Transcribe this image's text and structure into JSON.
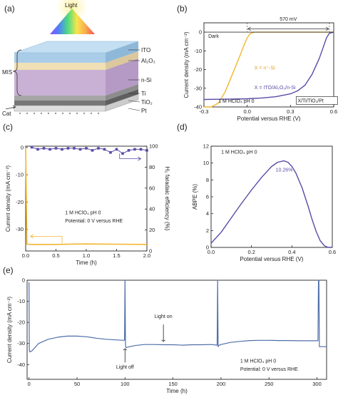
{
  "panel_labels": {
    "a": "(a)",
    "b": "(b)",
    "c": "(c)",
    "d": "(d)",
    "e": "(e)"
  },
  "panel_a": {
    "light": "Light",
    "layers": {
      "ito": "ITO",
      "al2o3": "Al₂O₃",
      "nsi": "n-Si",
      "ti": "Ti",
      "tio2": "TiO₂",
      "pt": "Pt"
    },
    "mis": "MIS",
    "cat": "Cat",
    "colors": {
      "ito": "#a9cde8",
      "al2o3": "#f1dfb6",
      "nsi": "#c9b1d6",
      "ti": "#a6a6a6",
      "tio2": "#777777",
      "pt": "#dedede"
    }
  },
  "chart_data": [
    {
      "id": "b",
      "type": "line",
      "xlabel": "Potential versus RHE (V)",
      "ylabel": "Current density (mA cm⁻²)",
      "xlim": [
        -0.3,
        0.6
      ],
      "ylim": [
        -40,
        5
      ],
      "xticks": [
        "-0.3",
        "0.0",
        "0.3",
        "0.6"
      ],
      "yticks": [
        "0",
        "-10",
        "-20",
        "-30",
        "-40"
      ],
      "annotations": {
        "dark": "Dark",
        "delta": "570 mV",
        "condition": "1 M HClO₄ pH 0",
        "box": "X/Ti/TiO₂/Pt"
      },
      "series": [
        {
          "name": "X = n⁺-Si",
          "color": "#f2b630",
          "x": [
            -0.3,
            -0.25,
            -0.2,
            -0.15,
            -0.1,
            -0.05,
            -0.02,
            0.0,
            0.02,
            0.05,
            0.08,
            0.6
          ],
          "y": [
            -40,
            -40,
            -38,
            -31.5,
            -22,
            -12.5,
            -6.5,
            -3,
            -0.8,
            0,
            0,
            0
          ]
        },
        {
          "name": "X = ITO/Al₂O₃/n-Si",
          "color": "#5b4aa6",
          "x": [
            -0.3,
            -0.2,
            -0.1,
            0.0,
            0.1,
            0.2,
            0.3,
            0.35,
            0.4,
            0.45,
            0.5,
            0.53,
            0.55,
            0.57,
            0.6
          ],
          "y": [
            -36,
            -35.9,
            -35.8,
            -35.6,
            -35.2,
            -34.5,
            -33,
            -31.4,
            -28.4,
            -22.5,
            -14,
            -7.5,
            -3,
            -0.6,
            0
          ]
        },
        {
          "name": "Dark",
          "color": "#333333",
          "x": [
            -0.3,
            0.6
          ],
          "y": [
            0,
            0
          ]
        }
      ]
    },
    {
      "id": "c",
      "type": "line",
      "xlabel": "Time (h)",
      "ylabel": "Current density (mA cm⁻²)",
      "y2label": "H₂ faradaic efficiency (%)",
      "xlim": [
        0,
        2
      ],
      "ylim": [
        -38,
        0.5
      ],
      "y2lim": [
        0,
        100
      ],
      "xticks": [
        "0.0",
        "0.5",
        "1.0",
        "1.5",
        "2.0"
      ],
      "yticks": [
        "0",
        "-10",
        "-20",
        "-30"
      ],
      "y2ticks": [
        "0",
        "20",
        "40",
        "60",
        "80",
        "100"
      ],
      "annotations": {
        "condition": "1 M HClO₄ pH 0",
        "potential": "Potential: 0 V versus RHE"
      },
      "series": [
        {
          "name": "current",
          "color": "#f2b630",
          "x": [
            0,
            0.02,
            0.1,
            0.5,
            1.0,
            1.5,
            2.0
          ],
          "y": [
            0,
            -35.5,
            -35.6,
            -35.6,
            -35.4,
            -35.5,
            -35.6
          ]
        },
        {
          "name": "faradaic efficiency",
          "color": "#5b4aa6",
          "axis": "y2",
          "x": [
            0.1,
            0.2,
            0.3,
            0.4,
            0.5,
            0.6,
            0.7,
            0.8,
            0.9,
            1.0,
            1.1,
            1.2,
            1.3,
            1.4,
            1.5,
            1.6,
            1.7,
            1.8,
            1.9,
            2.0
          ],
          "y": [
            99,
            97,
            98,
            97,
            98,
            97,
            98,
            98,
            97,
            98,
            96,
            98,
            97,
            94,
            97,
            93,
            96,
            97,
            97,
            96
          ]
        }
      ]
    },
    {
      "id": "d",
      "type": "line",
      "xlabel": "Potential versus RHE (V)",
      "ylabel": "ABPE (%)",
      "xlim": [
        0,
        0.6
      ],
      "ylim": [
        0,
        12
      ],
      "xticks": [
        "0.0",
        "0.2",
        "0.4",
        "0.6"
      ],
      "yticks": [
        "0",
        "2",
        "4",
        "6",
        "8",
        "10",
        "12"
      ],
      "annotations": {
        "condition": "1 M HClO₄ pH 0",
        "peak": "10.26%"
      },
      "series": [
        {
          "name": "ABPE",
          "color": "#5b4aa6",
          "x": [
            0.0,
            0.05,
            0.1,
            0.15,
            0.2,
            0.25,
            0.3,
            0.33,
            0.36,
            0.38,
            0.4,
            0.42,
            0.45,
            0.48,
            0.5,
            0.52,
            0.54,
            0.56,
            0.58,
            0.6
          ],
          "y": [
            0.5,
            1.8,
            3.5,
            5.2,
            6.8,
            8.3,
            9.6,
            10.1,
            10.26,
            10.1,
            9.6,
            8.8,
            7.1,
            4.9,
            3.3,
            1.9,
            0.8,
            0.2,
            0.0,
            0.0
          ]
        }
      ]
    },
    {
      "id": "e",
      "type": "line",
      "xlabel": "Time (h)",
      "ylabel": "Current density (mA cm⁻²)",
      "xlim": [
        -2,
        310
      ],
      "ylim": [
        -47,
        0
      ],
      "xticks": [
        "0",
        "50",
        "100",
        "150",
        "200",
        "250",
        "300"
      ],
      "yticks": [
        "0",
        "-10",
        "-20",
        "-30",
        "-40"
      ],
      "annotations": {
        "light_off": "Light off",
        "light_on": "Light on",
        "condition": "1 M HClO₄ pH 0",
        "potential": "Potential: 0 V versus RHE"
      },
      "series": [
        {
          "name": "current",
          "color": "#4f6fa8",
          "x": [
            0,
            0.3,
            1,
            3,
            10,
            20,
            30,
            40,
            50,
            60,
            70,
            80,
            90,
            99.5,
            100,
            100.5,
            101,
            105,
            110,
            120,
            130,
            140,
            150,
            160,
            170,
            180,
            190,
            196,
            196.5,
            197,
            197.5,
            200,
            210,
            220,
            230,
            240,
            250,
            260,
            270,
            280,
            290,
            300,
            301,
            301.5,
            302,
            302.5,
            303,
            310
          ],
          "y": [
            -1,
            -33,
            -34,
            -33.5,
            -30,
            -28,
            -27,
            -26.5,
            -26.5,
            -26.8,
            -27.5,
            -28,
            -28.3,
            -28.5,
            0,
            -31,
            -32,
            -31.5,
            -31,
            -30.5,
            -30.5,
            -30.6,
            -30.6,
            -30.8,
            -30.6,
            -30.6,
            -30.5,
            -30.8,
            0,
            -31.5,
            -31,
            -30.5,
            -29.5,
            -29,
            -28.6,
            -28.5,
            -28.5,
            -28.6,
            -28.6,
            -28.7,
            -28.7,
            -28.7,
            -28.7,
            0,
            0,
            -31.5,
            -31.5,
            -31.5
          ]
        }
      ]
    }
  ]
}
